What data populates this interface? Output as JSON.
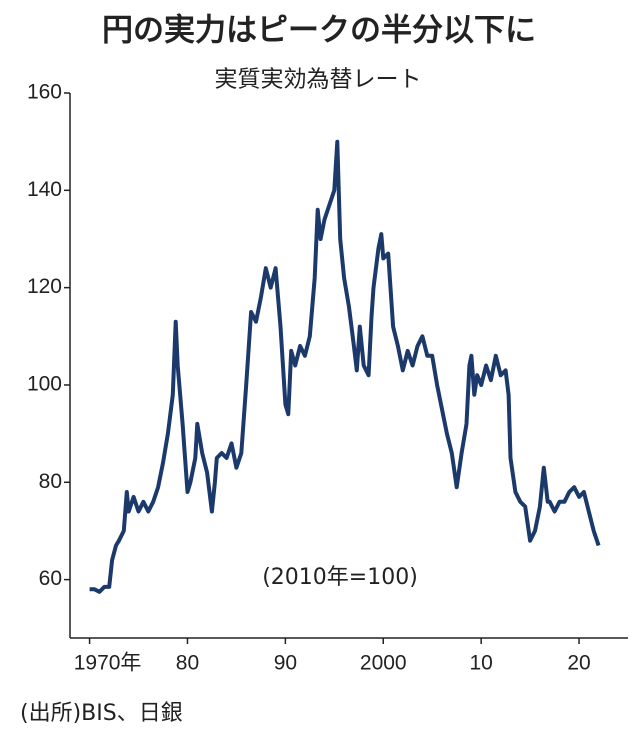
{
  "chart_data": {
    "type": "line",
    "title": "円の実力はピークの半分以下に",
    "subtitle": "実質実効為替レート",
    "annotation": "(2010年=100)",
    "source": "(出所)BIS、日銀",
    "xlim": [
      1968,
      2025
    ],
    "ylim": [
      48,
      160
    ],
    "xticks": [
      {
        "value": 1970,
        "label": "1970年"
      },
      {
        "value": 1980,
        "label": "80"
      },
      {
        "value": 1990,
        "label": "90"
      },
      {
        "value": 2000,
        "label": "2000"
      },
      {
        "value": 2010,
        "label": "10"
      },
      {
        "value": 2020,
        "label": "20"
      }
    ],
    "yticks": [
      60,
      80,
      100,
      120,
      140,
      160
    ],
    "grid": false,
    "series": [
      {
        "name": "実質実効為替レート",
        "color": "#1b3a6b",
        "x": [
          1970,
          1970.5,
          1971,
          1971.5,
          1972,
          1972.3,
          1972.7,
          1973,
          1973.5,
          1973.8,
          1974,
          1974.5,
          1975,
          1975.5,
          1976,
          1976.5,
          1977,
          1977.5,
          1978,
          1978.5,
          1978.8,
          1979,
          1979.5,
          1980,
          1980.3,
          1980.8,
          1981,
          1981.5,
          1982,
          1982.5,
          1982.8,
          1983,
          1983.5,
          1984,
          1984.5,
          1985,
          1985.5,
          1986,
          1986.5,
          1987,
          1987.5,
          1988,
          1988.5,
          1989,
          1989.5,
          1990,
          1990.3,
          1990.6,
          1991,
          1991.5,
          1992,
          1992.5,
          1993,
          1993.3,
          1993.6,
          1994,
          1994.5,
          1995,
          1995.3,
          1995.6,
          1996,
          1996.5,
          1997,
          1997.3,
          1997.6,
          1998,
          1998.5,
          1998.8,
          1999,
          1999.5,
          1999.8,
          2000,
          2000.5,
          2001,
          2001.5,
          2002,
          2002.5,
          2003,
          2003.5,
          2004,
          2004.5,
          2005,
          2005.5,
          2006,
          2006.5,
          2007,
          2007.5,
          2008,
          2008.5,
          2008.8,
          2009,
          2009.3,
          2009.6,
          2010,
          2010.5,
          2011,
          2011.5,
          2012,
          2012.5,
          2012.8,
          2013,
          2013.5,
          2014,
          2014.5,
          2015,
          2015.5,
          2016,
          2016.4,
          2016.8,
          2017,
          2017.5,
          2018,
          2018.5,
          2019,
          2019.5,
          2020,
          2020.5,
          2021,
          2021.5,
          2022
        ],
        "values": [
          58,
          58,
          57.5,
          58.5,
          58.5,
          64,
          67,
          68,
          70,
          78,
          74,
          77,
          74,
          76,
          74,
          76,
          79,
          84,
          90,
          98,
          113,
          104,
          92,
          78,
          80,
          85,
          92,
          86,
          82,
          74,
          80,
          85,
          86,
          85,
          88,
          83,
          86,
          100,
          115,
          113,
          118,
          124,
          120,
          124,
          112,
          96,
          94,
          107,
          104,
          108,
          106,
          110,
          122,
          136,
          130,
          134,
          137,
          140,
          150,
          130,
          122,
          116,
          108,
          103,
          112,
          104,
          102,
          114,
          120,
          128,
          131,
          126,
          127,
          112,
          108,
          103,
          107,
          104,
          108,
          110,
          106,
          106,
          100,
          95,
          90,
          86,
          79,
          86,
          92,
          104,
          106,
          98,
          102,
          100,
          104,
          101,
          106,
          102,
          103,
          98,
          85,
          78,
          76,
          75,
          68,
          70,
          75,
          83,
          76,
          76,
          74,
          76,
          76,
          78,
          79,
          77,
          78,
          74,
          70,
          67
        ]
      }
    ]
  }
}
